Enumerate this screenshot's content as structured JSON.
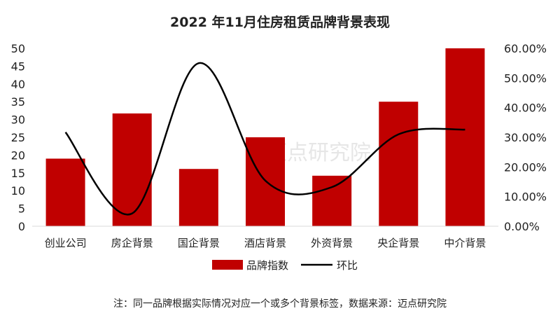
{
  "chart_data": {
    "type": "bar+line",
    "title": "2022 年11月住房租赁品牌背景表现",
    "categories": [
      "创业公司",
      "房企背景",
      "国企背景",
      "酒店背景",
      "外资背景",
      "央企背景",
      "中介背景"
    ],
    "series": [
      {
        "name": "品牌指数",
        "type": "bar",
        "axis": "left",
        "color": "#c00000",
        "values": [
          19,
          31.7,
          16.1,
          25,
          14.2,
          35,
          50
        ]
      },
      {
        "name": "环比",
        "type": "line",
        "axis": "right",
        "color": "#000000",
        "values": [
          0.317,
          0.043,
          0.55,
          0.154,
          0.132,
          0.31,
          0.326
        ]
      }
    ],
    "left_axis": {
      "ylim": [
        0,
        50
      ],
      "ticks": [
        "0",
        "5",
        "10",
        "15",
        "20",
        "25",
        "30",
        "35",
        "40",
        "45",
        "50"
      ]
    },
    "right_axis": {
      "ylim": [
        0,
        0.6
      ],
      "ticks": [
        "0.00%",
        "10.00%",
        "20.00%",
        "30.00%",
        "40.00%",
        "50.00%",
        "60.00%"
      ]
    },
    "grid": false,
    "legend_position": "bottom",
    "note": "注：同一品牌根据实际情况对应一个或多个背景标签，数据来源：迈点研究院",
    "watermark": "迈点研究院"
  }
}
